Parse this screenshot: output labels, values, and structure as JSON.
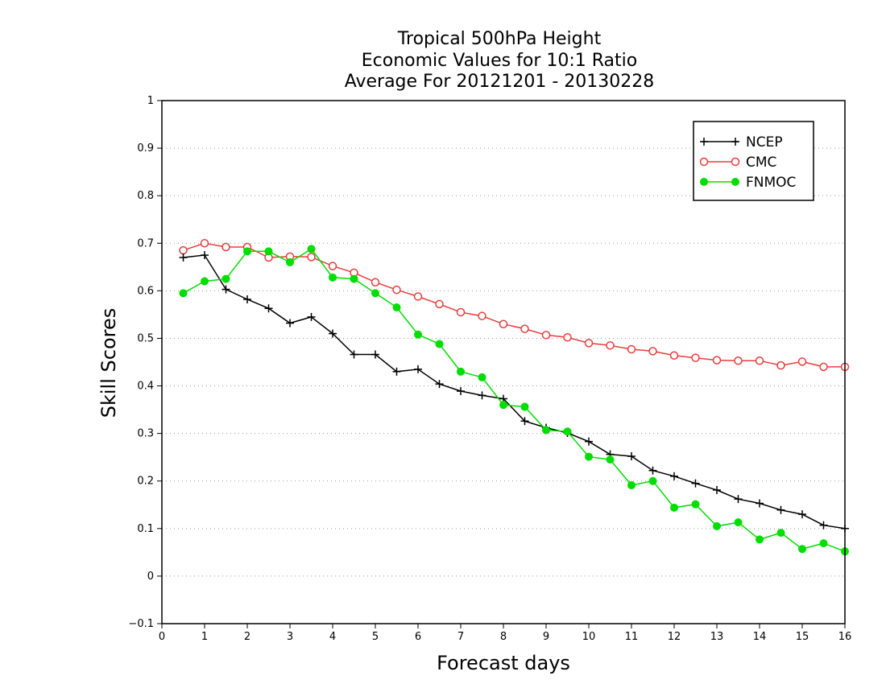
{
  "chart_data": {
    "type": "line",
    "title_lines": [
      "Tropical 500hPa Height",
      "Economic Values for 10:1 Ratio",
      "Average For 20121201 - 20130228"
    ],
    "xlabel": "Forecast days",
    "ylabel": "Skill Scores",
    "xlim": [
      0,
      16
    ],
    "ylim": [
      -0.1,
      1
    ],
    "xticks": [
      "0",
      "1",
      "2",
      "3",
      "4",
      "5",
      "6",
      "7",
      "8",
      "9",
      "10",
      "11",
      "12",
      "13",
      "14",
      "15",
      "16"
    ],
    "yticks": [
      "−0.1",
      "0",
      "0.1",
      "0.2",
      "0.3",
      "0.4",
      "0.5",
      "0.6",
      "0.7",
      "0.8",
      "0.9",
      "1"
    ],
    "grid": "horizontal dotted",
    "legend_position": "top-right",
    "x": [
      0.5,
      1,
      1.5,
      2,
      2.5,
      3,
      3.5,
      4,
      4.5,
      5,
      5.5,
      6,
      6.5,
      7,
      7.5,
      8,
      8.5,
      9,
      9.5,
      10,
      10.5,
      11,
      11.5,
      12,
      12.5,
      13,
      13.5,
      14,
      14.5,
      15,
      15.5,
      16
    ],
    "series": [
      {
        "name": "NCEP",
        "color": "#000000",
        "marker": "plus",
        "values": [
          0.67,
          0.675,
          0.603,
          0.582,
          0.563,
          0.532,
          0.545,
          0.51,
          0.466,
          0.466,
          0.43,
          0.435,
          0.404,
          0.389,
          0.38,
          0.373,
          0.326,
          0.312,
          0.301,
          0.283,
          0.256,
          0.252,
          0.222,
          0.21,
          0.195,
          0.181,
          0.162,
          0.153,
          0.139,
          0.13,
          0.107,
          0.1
        ]
      },
      {
        "name": "CMC",
        "color": "#e83c3c",
        "marker": "open-circle",
        "values": [
          0.685,
          0.7,
          0.692,
          0.692,
          0.67,
          0.672,
          0.671,
          0.652,
          0.638,
          0.618,
          0.602,
          0.588,
          0.572,
          0.555,
          0.547,
          0.53,
          0.52,
          0.507,
          0.502,
          0.49,
          0.485,
          0.477,
          0.473,
          0.464,
          0.459,
          0.454,
          0.453,
          0.453,
          0.443,
          0.451,
          0.44,
          0.44
        ]
      },
      {
        "name": "FNMOC",
        "color": "#00dd00",
        "marker": "filled-circle",
        "values": [
          0.595,
          0.62,
          0.625,
          0.683,
          0.683,
          0.66,
          0.688,
          0.628,
          0.625,
          0.595,
          0.565,
          0.508,
          0.488,
          0.43,
          0.418,
          0.36,
          0.356,
          0.307,
          0.304,
          0.251,
          0.245,
          0.191,
          0.2,
          0.144,
          0.151,
          0.105,
          0.113,
          0.077,
          0.091,
          0.057,
          0.069,
          0.052
        ]
      }
    ]
  }
}
